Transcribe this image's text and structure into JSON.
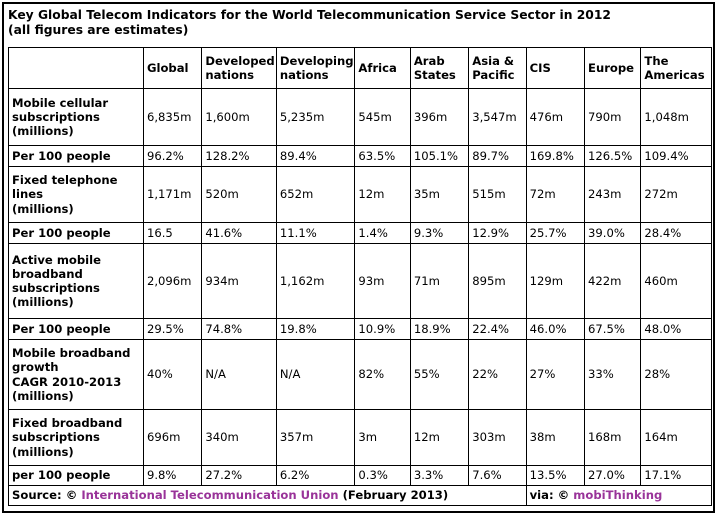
{
  "title": {
    "line1": "Key Global Telecom Indicators for the World Telecommunication Service Sector in 2012",
    "line2": "(all figures are estimates)"
  },
  "columns": [
    "Global",
    [
      "Developed",
      "nations"
    ],
    [
      "Developing",
      "nations"
    ],
    "Africa",
    [
      "Arab",
      "States"
    ],
    [
      "Asia &",
      "Pacific"
    ],
    "CIS",
    "Europe",
    [
      "The",
      "Americas"
    ]
  ],
  "headers": {
    "global": "Global",
    "developed_1": "Developed",
    "developed_2": "nations",
    "developing_1": "Developing",
    "developing_2": "nations",
    "africa": "Africa",
    "arab_1": "Arab",
    "arab_2": "States",
    "asia_1": "Asia &",
    "asia_2": "Pacific",
    "cis": "CIS",
    "europe": "Europe",
    "americas_1": "The",
    "americas_2": "Americas"
  },
  "rows": [
    {
      "label": [
        "Mobile cellular",
        "subscriptions",
        "(millions)"
      ],
      "values": [
        "6,835m",
        "1,600m",
        "5,235m",
        "545m",
        "396m",
        "3,547m",
        "476m",
        "790m",
        "1,048m"
      ]
    },
    {
      "label": [
        "Per 100 people"
      ],
      "values": [
        "96.2%",
        "128.2%",
        "89.4%",
        "63.5%",
        "105.1%",
        "89.7%",
        "169.8%",
        "126.5%",
        "109.4%"
      ]
    },
    {
      "label": [
        "Fixed telephone",
        "lines",
        "(millions)"
      ],
      "values": [
        "1,171m",
        "520m",
        "652m",
        "12m",
        "35m",
        "515m",
        "72m",
        "243m",
        "272m"
      ]
    },
    {
      "label": [
        "Per 100 people"
      ],
      "values": [
        "16.5",
        "41.6%",
        "11.1%",
        "1.4%",
        "9.3%",
        "12.9%",
        "25.7%",
        "39.0%",
        "28.4%"
      ]
    },
    {
      "label": [
        "Active mobile",
        "broadband",
        "subscriptions",
        "(millions)"
      ],
      "values": [
        "2,096m",
        "934m",
        "1,162m",
        "93m",
        "71m",
        "895m",
        "129m",
        "422m",
        "460m"
      ]
    },
    {
      "label": [
        "Per 100 people"
      ],
      "values": [
        "29.5%",
        "74.8%",
        "19.8%",
        "10.9%",
        "18.9%",
        "22.4%",
        "46.0%",
        "67.5%",
        "48.0%"
      ]
    },
    {
      "label": [
        "Mobile broadband",
        "growth",
        "CAGR 2010-2013",
        "(millions)"
      ],
      "values": [
        "40%",
        "N/A",
        "N/A",
        "82%",
        "55%",
        "22%",
        "27%",
        "33%",
        "28%"
      ]
    },
    {
      "label": [
        "Fixed broadband",
        "subscriptions",
        "(millions)"
      ],
      "values": [
        "696m",
        "340m",
        "357m",
        "3m",
        "12m",
        "303m",
        "38m",
        "168m",
        "164m"
      ]
    },
    {
      "label": [
        "per 100 people"
      ],
      "values": [
        "9.8%",
        "27.2%",
        "6.2%",
        "0.3%",
        "3.3%",
        "7.6%",
        "13.5%",
        "27.0%",
        "17.1%"
      ]
    }
  ],
  "footer": {
    "source_prefix": "Source: © ",
    "source_org": "International Telecommunication Union",
    "source_date": " (February 2013)",
    "via_prefix": "via: © ",
    "via_org": "mobiThinking"
  },
  "colors": {
    "link": "#993399",
    "border": "#000000"
  }
}
